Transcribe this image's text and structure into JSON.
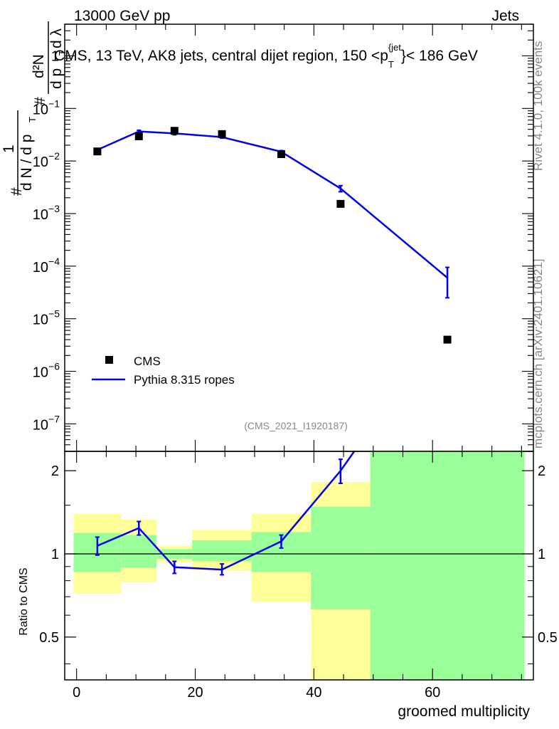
{
  "header": {
    "left": "13000 GeV pp",
    "right": "Jets"
  },
  "side_text": {
    "rivet": "Rivet 4.1.0,  100k events",
    "mcplots": "mcplots.cern.ch [arXiv:2401.10621]"
  },
  "colors": {
    "mc": "#0000ee",
    "band_yellow": "#ffff99",
    "band_green": "#99ff99",
    "data": "#000000"
  },
  "chart_data": [
    {
      "type": "scatter",
      "name": "main",
      "title": "CMS, 13 TeV, AK8 jets, central dijet region, 150 <p_T^{jet}< 186 GeV",
      "title_parts": {
        "main": "CMS, 13 TeV, AK8 jets, central dijet region, 150 <p",
        "sub": "T",
        "sup": "{jet",
        "end": "}< 186 GeV"
      },
      "ylabel": "1/dN/dp_T d²N/dp_T dλ",
      "ylabel_parts": {
        "hash": "#",
        "one": "1",
        "dN": "d N / d p",
        "T": "T",
        "d2N": "d²N",
        "dp": "d p",
        "dlambda": "d λ"
      },
      "yscale": "log",
      "ylim": [
        3e-08,
        4
      ],
      "xlim": [
        -2,
        77
      ],
      "yticks": [
        {
          "value": 1,
          "label": "1"
        },
        {
          "value": 0.1,
          "base": "10",
          "exp": "−1"
        },
        {
          "value": 0.01,
          "base": "10",
          "exp": "−2"
        },
        {
          "value": 0.001,
          "base": "10",
          "exp": "−3"
        },
        {
          "value": 0.0001,
          "base": "10",
          "exp": "−4"
        },
        {
          "value": 1e-05,
          "base": "10",
          "exp": "−5"
        },
        {
          "value": 1e-06,
          "base": "10",
          "exp": "−6"
        },
        {
          "value": 1e-07,
          "base": "10",
          "exp": "−7"
        }
      ],
      "watermark": "(CMS_2021_I1920187)",
      "legend": {
        "position": "lower-left",
        "entries": [
          {
            "label": "CMS",
            "marker": "square"
          },
          {
            "label": "Pythia 8.315 ropes",
            "marker": "line"
          }
        ]
      },
      "series": [
        {
          "name": "CMS",
          "x": [
            3.5,
            10.5,
            16.5,
            24.5,
            34.5,
            44.5,
            62.5
          ],
          "y": [
            0.0152,
            0.0295,
            0.0375,
            0.0325,
            0.0135,
            0.00153,
            4e-06
          ]
        },
        {
          "name": "Pythia 8.315 ropes",
          "x": [
            3.5,
            10.5,
            16.5,
            24.5,
            34.5,
            44.5,
            62.5
          ],
          "y": [
            0.0163,
            0.0365,
            0.0335,
            0.0285,
            0.015,
            0.003,
            6e-05
          ],
          "yerr_low": [
            0.0153,
            0.0345,
            0.0315,
            0.0272,
            0.0142,
            0.0026,
            2.5e-05
          ],
          "yerr_high": [
            0.0173,
            0.0385,
            0.0355,
            0.0298,
            0.0158,
            0.0034,
            9.5e-05
          ]
        }
      ]
    },
    {
      "type": "line",
      "name": "ratio",
      "ylabel": "Ratio to CMS",
      "xlabel": "groomed multiplicity",
      "yscale": "log",
      "ylim": [
        0.35,
        2.35
      ],
      "xlim": [
        -2,
        77
      ],
      "xticks": [
        0,
        20,
        40,
        60
      ],
      "yticks": [
        0.5,
        1,
        2
      ],
      "reference_line": 1,
      "bands": [
        {
          "x0": -0.5,
          "x1": 7.5,
          "yellow": [
            0.72,
            1.4
          ],
          "green": [
            0.86,
            1.19
          ]
        },
        {
          "x0": 7.5,
          "x1": 13.5,
          "yellow": [
            0.79,
            1.33
          ],
          "green": [
            0.89,
            1.17
          ]
        },
        {
          "x0": 13.5,
          "x1": 19.5,
          "yellow": [
            0.93,
            1.07
          ],
          "green": [
            0.96,
            1.04
          ]
        },
        {
          "x0": 19.5,
          "x1": 29.5,
          "yellow": [
            0.87,
            1.22
          ],
          "green": [
            0.94,
            1.12
          ]
        },
        {
          "x0": 29.5,
          "x1": 39.5,
          "yellow": [
            0.67,
            1.4
          ],
          "green": [
            0.86,
            1.2
          ]
        },
        {
          "x0": 39.5,
          "x1": 49.5,
          "yellow": [
            0.3,
            1.82
          ],
          "green": [
            0.63,
            1.48
          ]
        },
        {
          "x0": 49.5,
          "x1": 75.5,
          "yellow": [
            0.3,
            2.4
          ],
          "green": [
            0.3,
            2.4
          ]
        }
      ],
      "series": [
        {
          "name": "Pythia 8.315 ropes",
          "x": [
            3.5,
            10.5,
            16.5,
            24.5,
            34.5,
            44.5,
            46.8
          ],
          "y": [
            1.07,
            1.24,
            0.895,
            0.877,
            1.11,
            2.0,
            2.35
          ],
          "yerr_low": [
            0.99,
            1.17,
            0.85,
            0.84,
            1.05,
            1.8,
            null
          ],
          "yerr_high": [
            1.15,
            1.31,
            0.94,
            0.92,
            1.17,
            2.2,
            null
          ]
        }
      ]
    }
  ]
}
